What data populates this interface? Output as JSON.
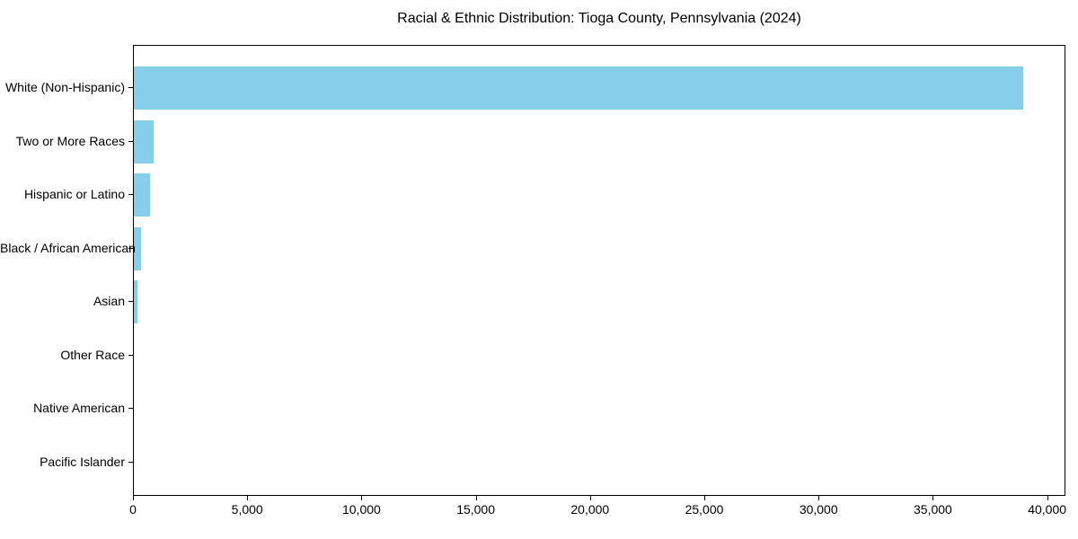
{
  "figure": {
    "background": "#ffffff"
  },
  "chart_data": {
    "type": "bar",
    "orientation": "horizontal",
    "title": "Racial & Ethnic Distribution: Tioga County, Pennsylvania (2024)",
    "categories": [
      "White (Non-Hispanic)",
      "Two or More Races",
      "Hispanic or Latino",
      "Black / African American",
      "Asian",
      "Other Race",
      "Native American",
      "Pacific Islander"
    ],
    "values": [
      38900,
      870,
      710,
      310,
      160,
      0,
      0,
      0
    ],
    "xlabel": "",
    "ylabel": "",
    "xlim": [
      0,
      40800
    ],
    "xticks": [
      0,
      5000,
      10000,
      15000,
      20000,
      25000,
      30000,
      35000,
      40000
    ],
    "xtick_labels": [
      "0",
      "5,000",
      "10,000",
      "15,000",
      "20,000",
      "25,000",
      "30,000",
      "35,000",
      "40,000"
    ],
    "grid": false,
    "legend": null,
    "bar_color": "#87CEEB",
    "axis_color": "#000000",
    "text_color": "#000000"
  }
}
